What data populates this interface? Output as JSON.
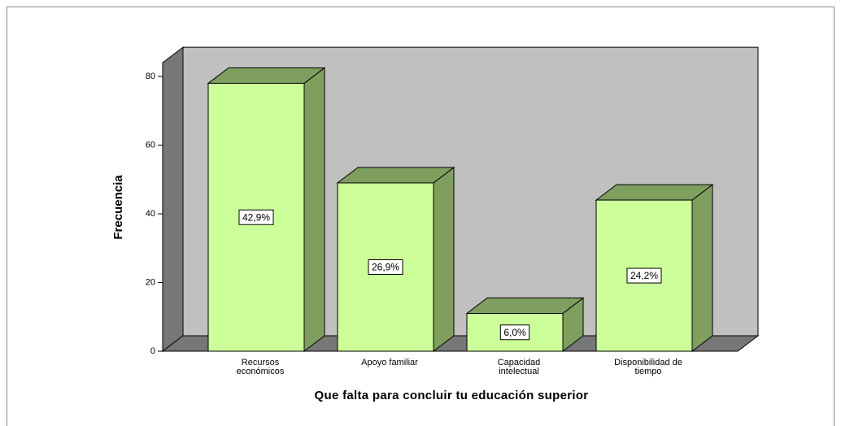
{
  "chart_data": {
    "type": "bar3d",
    "xlabel": "Que falta para concluir tu educación superior",
    "ylabel": "Frecuencia",
    "categories": [
      "Recursos\neconómicos",
      "Apoyo familiar",
      "Capacidad\nintelectual",
      "Disponibilidad de\ntiempo"
    ],
    "values": [
      78,
      49,
      11,
      44
    ],
    "percent_labels": [
      "42,9%",
      "26,9%",
      "6,0%",
      "24,2%"
    ],
    "color": "#ccff99",
    "ylim": [
      0,
      84
    ],
    "yticks": [
      0,
      20,
      40,
      60,
      80
    ]
  }
}
